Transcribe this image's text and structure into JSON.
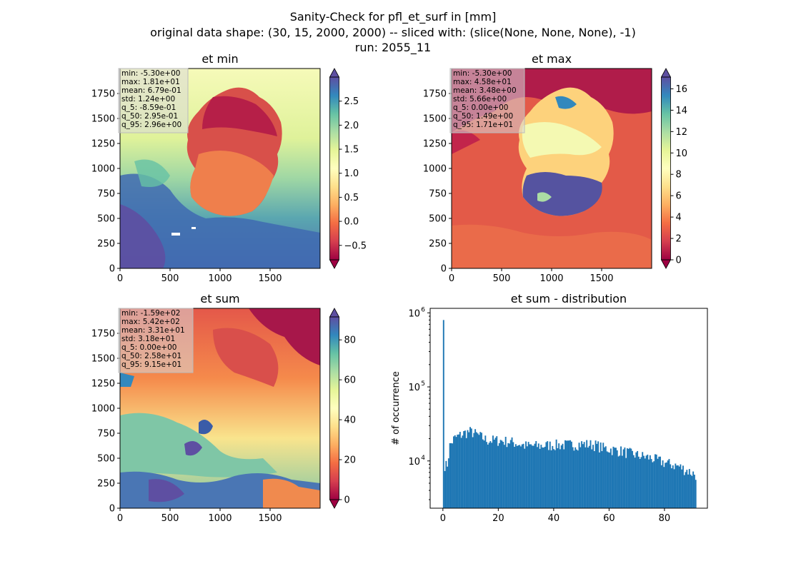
{
  "figure": {
    "title_lines": [
      "Sanity-Check for pfl_et_surf in [mm]",
      "original data shape: (30, 15, 2000, 2000) -- sliced with: (slice(None, None, None), -1)",
      "run: 2055_11"
    ]
  },
  "chart_data": [
    {
      "type": "heatmap",
      "title": "et min",
      "colormap": "Spectral",
      "colorbar_extend": "both",
      "x_ticks": [
        0,
        500,
        1000,
        1500
      ],
      "y_ticks": [
        0,
        250,
        500,
        750,
        1000,
        1250,
        1500,
        1750
      ],
      "xlim": [
        0,
        2000
      ],
      "ylim": [
        0,
        2000
      ],
      "clim": [
        -0.8,
        3.0
      ],
      "colorbar_ticks": [
        "−0.5",
        "0.0",
        "0.5",
        "1.0",
        "1.5",
        "2.0",
        "2.5"
      ],
      "colorbar_tick_values": [
        -0.5,
        0.0,
        0.5,
        1.0,
        1.5,
        2.0,
        2.5
      ],
      "stats": [
        "min: -5.30e+00",
        "max: 1.81e+01",
        "mean: 6.79e-01",
        "std: 1.24e+00",
        "q_5: -8.59e-01",
        "q_50: 2.95e-01",
        "q_95: 2.96e+00"
      ]
    },
    {
      "type": "heatmap",
      "title": "et max",
      "colormap": "Spectral",
      "colorbar_extend": "both",
      "x_ticks": [
        0,
        500,
        1000,
        1500
      ],
      "y_ticks": [
        0,
        250,
        500,
        750,
        1000,
        1250,
        1500,
        1750
      ],
      "xlim": [
        0,
        2000
      ],
      "ylim": [
        0,
        2000
      ],
      "clim": [
        0,
        17.1
      ],
      "colorbar_ticks": [
        "0",
        "2",
        "4",
        "6",
        "8",
        "10",
        "12",
        "14",
        "16"
      ],
      "colorbar_tick_values": [
        0,
        2,
        4,
        6,
        8,
        10,
        12,
        14,
        16
      ],
      "stats": [
        "min: -5.30e+00",
        "max: 4.58e+01",
        "mean: 3.48e+00",
        "std: 5.66e+00",
        "q_5: 0.00e+00",
        "q_50: 1.49e+00",
        "q_95: 1.71e+01"
      ]
    },
    {
      "type": "heatmap",
      "title": "et sum",
      "colormap": "Spectral",
      "colorbar_extend": "both",
      "x_ticks": [
        0,
        500,
        1000,
        1500
      ],
      "y_ticks": [
        0,
        250,
        500,
        750,
        1000,
        1250,
        1500,
        1750
      ],
      "xlim": [
        0,
        2000
      ],
      "ylim": [
        0,
        2000
      ],
      "clim": [
        0,
        91.5
      ],
      "colorbar_ticks": [
        "0",
        "20",
        "40",
        "60",
        "80"
      ],
      "colorbar_tick_values": [
        0,
        20,
        40,
        60,
        80
      ],
      "stats": [
        "min: -1.59e+02",
        "max: 5.42e+02",
        "mean: 3.31e+01",
        "std: 3.18e+01",
        "q_5: 0.00e+00",
        "q_50: 2.58e+01",
        "q_95: 9.15e+01"
      ]
    },
    {
      "type": "bar",
      "title": "et sum - distribution",
      "ylabel": "# of occurrence",
      "yscale": "log",
      "color": "#1f77b4",
      "x_ticks": [
        0,
        20,
        40,
        60,
        80
      ],
      "xlim": [
        -4.6,
        95.5
      ],
      "ylim": [
        2300,
        1150000
      ],
      "y_ticks": [
        10000,
        100000,
        1000000
      ],
      "y_tick_labels": [
        [
          "10",
          "4"
        ],
        [
          "10",
          "5"
        ],
        [
          "10",
          "6"
        ]
      ],
      "bin_start": 0,
      "bin_width": 0.4575,
      "bin_count": 200,
      "profile_points": [
        [
          0,
          800000
        ],
        [
          0.5,
          9000
        ],
        [
          1.5,
          8500
        ],
        [
          2.5,
          16000
        ],
        [
          4,
          20000
        ],
        [
          6,
          22000
        ],
        [
          8,
          24000
        ],
        [
          10,
          25000
        ],
        [
          12,
          23000
        ],
        [
          16,
          19000
        ],
        [
          20,
          19000
        ],
        [
          25,
          18000
        ],
        [
          30,
          16000
        ],
        [
          35,
          16000
        ],
        [
          40,
          16500
        ],
        [
          45,
          16500
        ],
        [
          50,
          17000
        ],
        [
          55,
          16500
        ],
        [
          58,
          15000
        ],
        [
          60,
          14500
        ],
        [
          65,
          13500
        ],
        [
          70,
          12000
        ],
        [
          75,
          11000
        ],
        [
          80,
          9500
        ],
        [
          85,
          8500
        ],
        [
          88,
          7500
        ],
        [
          91.5,
          6500
        ]
      ]
    }
  ]
}
